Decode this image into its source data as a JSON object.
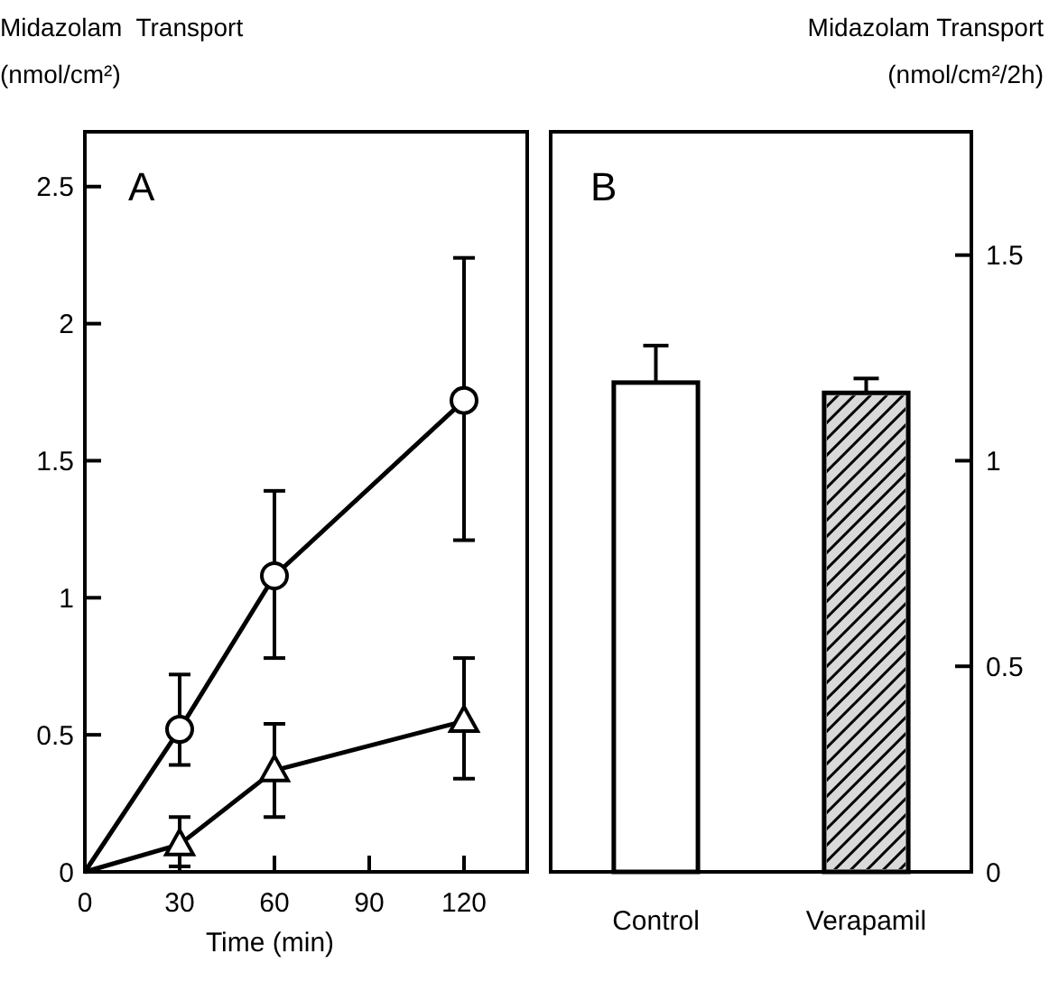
{
  "chart_data": [
    {
      "type": "line",
      "ylabel": "Midazolam  Transport\n(nmol/cm²)",
      "xlabel": "Time (min)",
      "annotations": [
        "A"
      ],
      "x": [
        0,
        30,
        60,
        120
      ],
      "xlim": [
        0,
        140
      ],
      "xticks": [
        0,
        30,
        60,
        90,
        120
      ],
      "ylim": [
        0,
        2.7
      ],
      "yticks": [
        0,
        0.5,
        1,
        1.5,
        2,
        2.5
      ],
      "grid": false,
      "line_style": "solid",
      "series": [
        {
          "color": "#000000",
          "marker": "circle",
          "values": [
            0,
            0.52,
            1.08,
            1.72
          ],
          "errors": [
            null,
            [
              0.39,
              0.72
            ],
            [
              0.78,
              1.39
            ],
            [
              1.21,
              2.24
            ]
          ]
        },
        {
          "color": "#000000",
          "marker": "triangle",
          "values": [
            0,
            0.1,
            0.37,
            0.55
          ],
          "errors": [
            null,
            [
              0.02,
              0.2
            ],
            [
              0.2,
              0.54
            ],
            [
              0.34,
              0.78
            ]
          ]
        }
      ]
    },
    {
      "type": "bar",
      "y2label": "Midazolam Transport\n(nmol/cm²/2h)",
      "annotations": [
        "B"
      ],
      "categories": [
        "Control",
        "Verapamil"
      ],
      "y2lim": [
        0,
        1.8
      ],
      "y2ticks": [
        0,
        0.5,
        1,
        1.5
      ],
      "grid": false,
      "series": [
        {
          "axis": "y2",
          "colors": [
            "#ffffff",
            "#d9d9d9"
          ],
          "values": [
            1.19,
            1.165
          ],
          "errors": [
            0.09,
            0.035
          ]
        }
      ]
    }
  ]
}
